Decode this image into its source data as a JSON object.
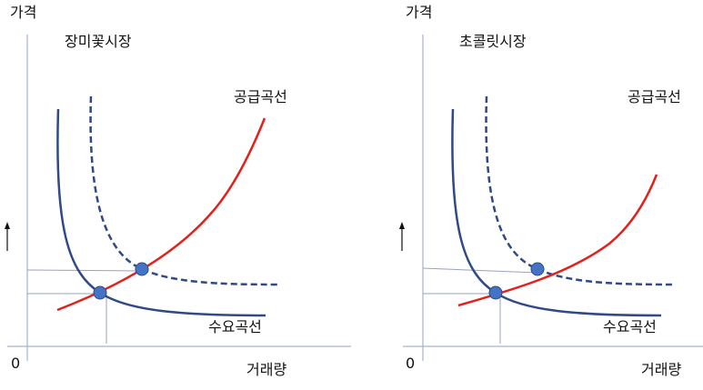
{
  "panels": [
    {
      "market_title": "장미꽃시장",
      "y_axis_label": "가격",
      "x_axis_label": "거래량",
      "origin_label": "0",
      "supply_label": "공급곡선",
      "demand_label": "수요곡선"
    },
    {
      "market_title": "초콜릿시장",
      "y_axis_label": "가격",
      "x_axis_label": "거래량",
      "origin_label": "0",
      "supply_label": "공급곡선",
      "demand_label": "수요곡선"
    }
  ],
  "colors": {
    "axis": "#a7b2cc",
    "demand": "#2f4a86",
    "supply": "#e3211c",
    "equilibrium_point": "#4472c4",
    "guide_line": "#98a3bd"
  }
}
